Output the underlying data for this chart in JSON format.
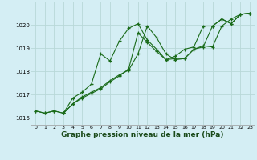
{
  "title": "Graphe pression niveau de la mer (hPa)",
  "bg_color": "#d4eef4",
  "grid_color": "#b8d8d8",
  "line_color": "#1a6b1a",
  "xlim": [
    -0.5,
    23.5
  ],
  "ylim": [
    1015.7,
    1021.0
  ],
  "yticks": [
    1016,
    1017,
    1018,
    1019,
    1020
  ],
  "xticks": [
    0,
    1,
    2,
    3,
    4,
    5,
    6,
    7,
    8,
    9,
    10,
    11,
    12,
    13,
    14,
    15,
    16,
    17,
    18,
    19,
    20,
    21,
    22,
    23
  ],
  "series": [
    {
      "x": [
        0,
        1,
        2,
        3,
        4,
        5,
        6,
        7,
        8,
        9,
        10,
        11,
        12,
        13,
        14,
        15,
        16,
        17,
        18,
        19,
        20,
        21,
        22,
        23
      ],
      "y": [
        1016.3,
        1016.2,
        1016.3,
        1016.2,
        1016.6,
        1016.85,
        1017.05,
        1017.25,
        1017.55,
        1017.8,
        1018.1,
        1019.65,
        1019.25,
        1018.85,
        1018.5,
        1018.55,
        1018.55,
        1018.95,
        1019.05,
        1019.95,
        1020.25,
        1020.05,
        1020.45,
        1020.5
      ]
    },
    {
      "x": [
        0,
        1,
        2,
        3,
        4,
        5,
        6,
        7,
        8,
        9,
        10,
        11,
        12,
        13,
        14,
        15,
        16,
        17,
        18,
        19,
        20,
        21,
        22,
        23
      ],
      "y": [
        1016.3,
        1016.2,
        1016.3,
        1016.2,
        1016.85,
        1017.1,
        1017.45,
        1018.75,
        1018.45,
        1019.3,
        1019.85,
        1020.05,
        1019.35,
        1018.95,
        1018.5,
        1018.65,
        1018.95,
        1019.05,
        1019.95,
        1019.95,
        1020.25,
        1020.05,
        1020.45,
        1020.5
      ]
    },
    {
      "x": [
        3,
        4,
        5,
        6,
        7,
        8,
        9,
        10,
        11,
        12,
        13,
        14,
        15,
        16,
        17,
        18,
        19,
        20,
        21,
        22,
        23
      ],
      "y": [
        1016.2,
        1016.6,
        1016.9,
        1017.1,
        1017.3,
        1017.6,
        1017.85,
        1018.05,
        1018.75,
        1019.95,
        1019.45,
        1018.75,
        1018.5,
        1018.55,
        1018.95,
        1019.1,
        1019.05,
        1019.95,
        1020.25,
        1020.45,
        1020.5
      ]
    }
  ]
}
